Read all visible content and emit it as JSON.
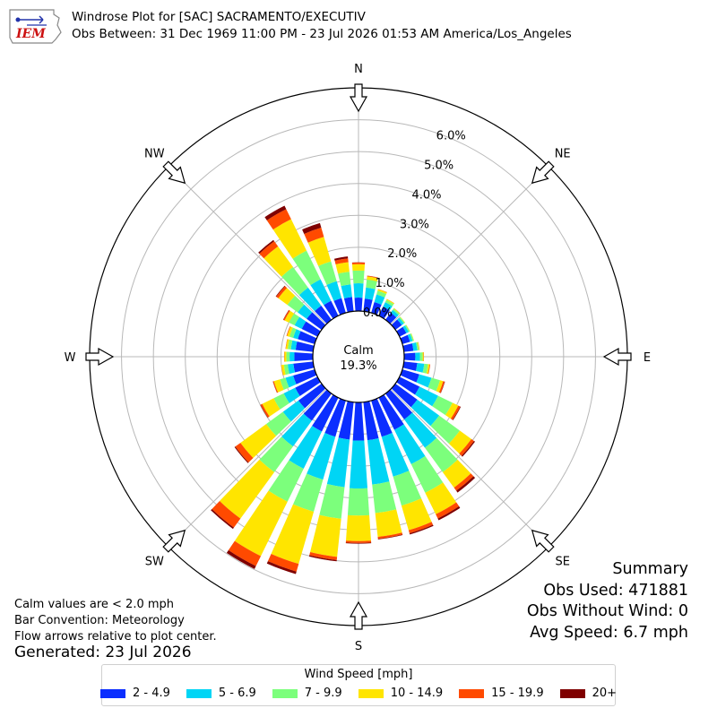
{
  "title_line1": "Windrose Plot for [SAC] SACRAMENTO/EXECUTIV",
  "title_line2": "Obs Between: 31 Dec 1969 11:00 PM - 23 Jul 2026 01:53 AM America/Los_Angeles",
  "logo_text": "IEM",
  "notes": {
    "calm_note": "Calm values are < 2.0 mph",
    "bar_convention": "Bar Convention: Meteorology",
    "flow_note": "Flow arrows relative to plot center.",
    "generated": "Generated: 23 Jul 2026"
  },
  "summary": {
    "title": "Summary",
    "obs_used": "Obs Used: 471881",
    "obs_without_wind": "Obs Without Wind: 0",
    "avg_speed": "Avg Speed: 6.7 mph"
  },
  "calm": {
    "label": "Calm",
    "value": "19.3%"
  },
  "legend": {
    "title": "Wind Speed [mph]",
    "entries": [
      {
        "label": "2 - 4.9",
        "color": "#0b2eff"
      },
      {
        "label": "5 - 6.9",
        "color": "#00d5f5"
      },
      {
        "label": "7 - 9.9",
        "color": "#7cff7c"
      },
      {
        "label": "10 - 14.9",
        "color": "#ffe500"
      },
      {
        "label": "15 - 19.9",
        "color": "#ff4a00"
      },
      {
        "label": "20+",
        "color": "#7f0000"
      }
    ]
  },
  "chart_data": {
    "type": "windrose",
    "radial_unit": "percent of observations",
    "radial_ticks": [
      "0.0%",
      "1.0%",
      "2.0%",
      "3.0%",
      "4.0%",
      "5.0%",
      "6.0%"
    ],
    "rmax": 7.0,
    "directions": [
      "N",
      "NE",
      "E",
      "SE",
      "S",
      "SW",
      "W",
      "NW"
    ],
    "bin_width_deg": 10,
    "sector_centers_deg": [
      0,
      10,
      20,
      30,
      40,
      50,
      60,
      70,
      80,
      90,
      100,
      110,
      120,
      130,
      140,
      150,
      160,
      170,
      180,
      190,
      200,
      210,
      220,
      230,
      240,
      250,
      260,
      270,
      280,
      290,
      300,
      310,
      320,
      330,
      340,
      350
    ],
    "series": [
      {
        "name": "2 - 4.9",
        "values": [
          0.42,
          0.4,
          0.35,
          0.32,
          0.28,
          0.25,
          0.24,
          0.25,
          0.3,
          0.35,
          0.42,
          0.55,
          0.7,
          0.85,
          1.0,
          1.12,
          1.18,
          1.2,
          1.2,
          1.18,
          1.18,
          1.18,
          1.05,
          0.9,
          0.78,
          0.7,
          0.62,
          0.58,
          0.55,
          0.55,
          0.55,
          0.58,
          0.55,
          0.52,
          0.48,
          0.45
        ]
      },
      {
        "name": "5 - 6.9",
        "values": [
          0.45,
          0.35,
          0.25,
          0.15,
          0.1,
          0.08,
          0.08,
          0.08,
          0.12,
          0.15,
          0.22,
          0.4,
          0.65,
          0.85,
          1.1,
          1.2,
          1.3,
          1.4,
          1.5,
          1.5,
          1.4,
          1.3,
          1.0,
          0.6,
          0.4,
          0.25,
          0.18,
          0.15,
          0.15,
          0.15,
          0.25,
          0.35,
          0.7,
          0.75,
          0.55,
          0.4
        ]
      },
      {
        "name": "7 - 9.9",
        "values": [
          0.4,
          0.25,
          0.12,
          0.08,
          0.05,
          0.04,
          0.04,
          0.04,
          0.05,
          0.08,
          0.12,
          0.28,
          0.5,
          0.8,
          0.95,
          1.0,
          0.95,
          0.9,
          0.85,
          1.0,
          1.05,
          1.15,
          1.0,
          0.65,
          0.35,
          0.18,
          0.12,
          0.1,
          0.1,
          0.12,
          0.2,
          0.4,
          0.8,
          1.0,
          0.65,
          0.4
        ]
      },
      {
        "name": "10 - 14.9",
        "values": [
          0.2,
          0.1,
          0.05,
          0.03,
          0.02,
          0.01,
          0.01,
          0.01,
          0.02,
          0.03,
          0.05,
          0.1,
          0.2,
          0.45,
          0.6,
          0.75,
          0.8,
          0.75,
          0.8,
          1.2,
          1.7,
          1.9,
          1.8,
          1.0,
          0.4,
          0.2,
          0.08,
          0.06,
          0.06,
          0.08,
          0.15,
          0.35,
          0.8,
          1.1,
          0.8,
          0.3
        ]
      },
      {
        "name": "15 - 19.9",
        "values": [
          0.05,
          0.02,
          0.01,
          0.005,
          0.005,
          0.0,
          0.0,
          0.0,
          0.005,
          0.01,
          0.02,
          0.05,
          0.07,
          0.1,
          0.12,
          0.15,
          0.1,
          0.06,
          0.06,
          0.1,
          0.25,
          0.35,
          0.35,
          0.2,
          0.06,
          0.03,
          0.01,
          0.01,
          0.01,
          0.02,
          0.04,
          0.08,
          0.2,
          0.35,
          0.3,
          0.12
        ]
      },
      {
        "name": "20+",
        "values": [
          0.01,
          0.005,
          0.0,
          0.0,
          0.0,
          0.0,
          0.0,
          0.0,
          0.0,
          0.0,
          0.0,
          0.01,
          0.02,
          0.04,
          0.07,
          0.06,
          0.04,
          0.02,
          0.02,
          0.04,
          0.08,
          0.1,
          0.05,
          0.03,
          0.01,
          0.005,
          0.0,
          0.0,
          0.0,
          0.0,
          0.01,
          0.02,
          0.05,
          0.12,
          0.15,
          0.06
        ]
      }
    ]
  }
}
